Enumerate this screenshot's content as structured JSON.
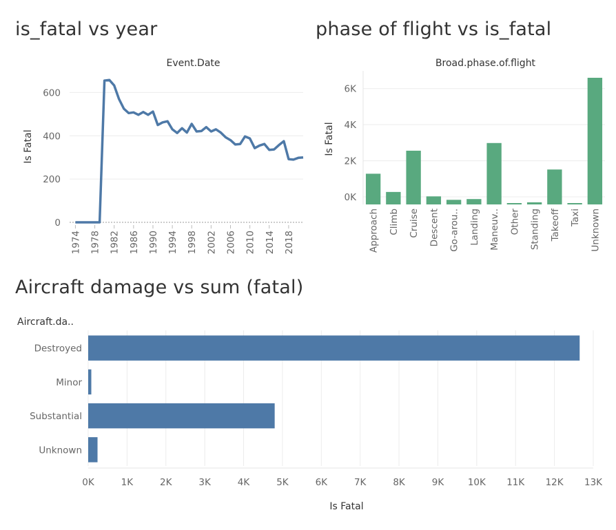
{
  "titles": {
    "chart1": "is_fatal vs year",
    "chart2": "phase of flight vs is_fatal",
    "chart3": "Aircraft damage vs sum (fatal)"
  },
  "colors": {
    "line": "#4e79a7",
    "green_bars": "#59a97f",
    "blue_bars": "#4e79a7",
    "text": "#333333",
    "tick": "#666666",
    "grid": "#ececec"
  },
  "chart_data": [
    {
      "type": "line",
      "title": "is_fatal vs year",
      "header": "Event.Date",
      "ylabel": "Is Fatal",
      "xlabel": "",
      "ylim": [
        0,
        700
      ],
      "yticks": [
        0,
        200,
        400,
        600
      ],
      "xtick_labels": [
        "1974",
        "1978",
        "1982",
        "1986",
        "1990",
        "1994",
        "1998",
        "2002",
        "2006",
        "2010",
        "2014",
        "2018"
      ],
      "x": [
        1974,
        1975,
        1976,
        1977,
        1978,
        1979,
        1980,
        1981,
        1982,
        1983,
        1984,
        1985,
        1986,
        1987,
        1988,
        1989,
        1990,
        1991,
        1992,
        1993,
        1994,
        1995,
        1996,
        1997,
        1998,
        1999,
        2000,
        2001,
        2002,
        2003,
        2004,
        2005,
        2006,
        2007,
        2008,
        2009,
        2010,
        2011,
        2012,
        2013,
        2014,
        2015,
        2016,
        2017,
        2018,
        2019,
        2020,
        2021
      ],
      "values": [
        0,
        0,
        0,
        0,
        0,
        0,
        655,
        658,
        633,
        570,
        525,
        505,
        508,
        497,
        510,
        497,
        512,
        450,
        462,
        467,
        430,
        413,
        435,
        415,
        455,
        420,
        422,
        440,
        420,
        430,
        415,
        393,
        380,
        360,
        362,
        397,
        388,
        343,
        355,
        362,
        335,
        337,
        357,
        375,
        292,
        290,
        298,
        300
      ],
      "grid": true
    },
    {
      "type": "bar",
      "title": "phase of flight vs is_fatal",
      "header": "Broad.phase.of.flight",
      "ylabel": "Is Fatal",
      "ylim": [
        0,
        6600
      ],
      "ytick_labels": [
        "0K",
        "2K",
        "4K",
        "6K"
      ],
      "categories": [
        "Approach",
        "Climb",
        "Cruise",
        "Descent",
        "Go-arou..",
        "Landing",
        "Maneuv..",
        "Other",
        "Standing",
        "Takeoff",
        "Taxi",
        "Unknown"
      ],
      "values": [
        1600,
        650,
        2800,
        420,
        240,
        280,
        3200,
        50,
        110,
        1820,
        40,
        6600
      ],
      "grid": true
    },
    {
      "type": "bar",
      "orientation": "horizontal",
      "title": "Aircraft damage vs sum (fatal)",
      "header": "Aircraft.da..",
      "xlabel": "Is Fatal",
      "xlim": [
        0,
        13000
      ],
      "xtick_labels": [
        "0K",
        "1K",
        "2K",
        "3K",
        "4K",
        "5K",
        "6K",
        "7K",
        "8K",
        "9K",
        "10K",
        "11K",
        "12K",
        "13K"
      ],
      "categories": [
        "Destroyed",
        "Minor",
        "Substantial",
        "Unknown"
      ],
      "values": [
        12650,
        80,
        4800,
        240
      ],
      "grid": true
    }
  ]
}
